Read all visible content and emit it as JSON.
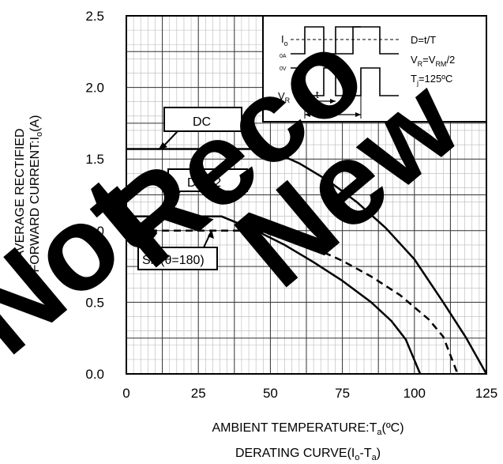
{
  "chart_data": {
    "type": "line",
    "xlabel": "AMBIENT TEMPERATURE:T_a(ºC)",
    "ylabel_line1": "AVERAGE RECTIFIED",
    "ylabel_line2": "FORWARD CURRENT:I_o(A)",
    "caption": "DERATING CURVE(I_o-T_a)",
    "xlim": [
      0,
      125
    ],
    "ylim": [
      0,
      2.5
    ],
    "x_ticks": [
      "0",
      "25",
      "50",
      "75",
      "100",
      "125"
    ],
    "y_ticks": [
      "0.0",
      "0.5",
      "1.0",
      "1.5",
      "2.0",
      "2.5"
    ],
    "grid": true,
    "series": [
      {
        "name": "DC",
        "style": "solid",
        "points": [
          [
            0,
            1.57
          ],
          [
            49,
            1.57
          ],
          [
            60,
            1.47
          ],
          [
            70,
            1.35
          ],
          [
            80,
            1.2
          ],
          [
            90,
            1.02
          ],
          [
            100,
            0.8
          ],
          [
            110,
            0.5
          ],
          [
            118,
            0.25
          ],
          [
            125,
            0.0
          ]
        ]
      },
      {
        "name": "D=1/2",
        "style": "solid",
        "points": [
          [
            0,
            1.1
          ],
          [
            33,
            1.1
          ],
          [
            45,
            1.0
          ],
          [
            55,
            0.9
          ],
          [
            65,
            0.78
          ],
          [
            75,
            0.65
          ],
          [
            85,
            0.5
          ],
          [
            92,
            0.37
          ],
          [
            97,
            0.24
          ],
          [
            102,
            0.0
          ]
        ]
      },
      {
        "name": "Sin(θ=180)",
        "style": "dashed",
        "points": [
          [
            0,
            1.0
          ],
          [
            45,
            1.0
          ],
          [
            55,
            0.95
          ],
          [
            65,
            0.88
          ],
          [
            75,
            0.79
          ],
          [
            85,
            0.68
          ],
          [
            95,
            0.55
          ],
          [
            105,
            0.38
          ],
          [
            110,
            0.26
          ],
          [
            115,
            0.0
          ]
        ]
      }
    ],
    "inset_legend": {
      "io_label": "I_o",
      "zero_a": "0A",
      "zero_v": "0V",
      "vr_label": "V_R",
      "t_label": "t",
      "T_label": "T",
      "line1": "D=t/T",
      "line2": "V_R=V_RM/2",
      "line3": "T_j=125ºC"
    },
    "watermark": "Not Recommended for New Designs"
  }
}
